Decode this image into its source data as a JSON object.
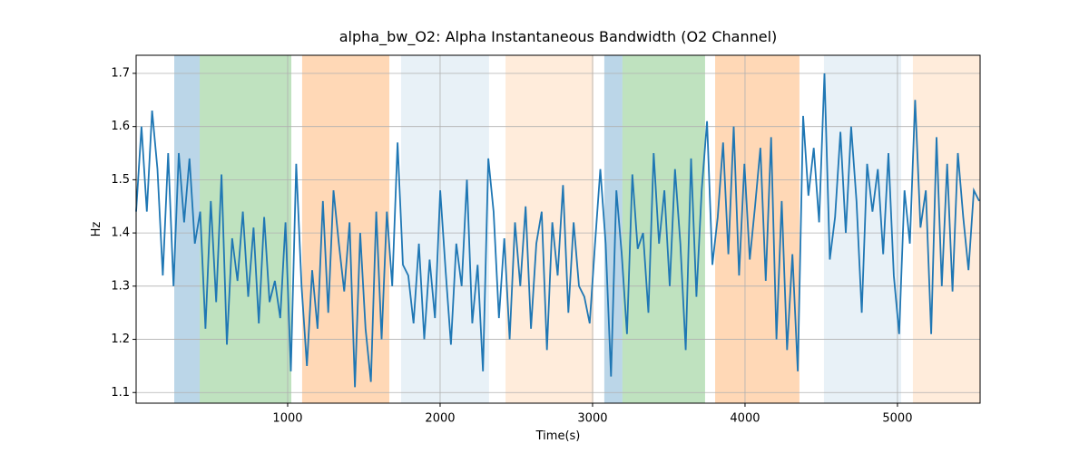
{
  "chart_data": {
    "type": "line",
    "title": "alpha_bw_O2: Alpha Instantaneous Bandwidth (O2 Channel)",
    "xlabel": "Time(s)",
    "ylabel": "Hz",
    "xlim": [
      6,
      5542
    ],
    "ylim": [
      1.08,
      1.734
    ],
    "xticks": [
      1000,
      2000,
      3000,
      4000,
      5000
    ],
    "yticks": [
      1.1,
      1.2,
      1.3,
      1.4,
      1.5,
      1.6,
      1.7
    ],
    "grid": true,
    "spans": [
      {
        "start": 256,
        "end": 423,
        "color": "#1f77b4",
        "alpha": 0.3
      },
      {
        "start": 423,
        "end": 1024,
        "color": "#2ca02c",
        "alpha": 0.3
      },
      {
        "start": 1095,
        "end": 1667,
        "color": "#ff7f0e",
        "alpha": 0.3
      },
      {
        "start": 1744,
        "end": 2321,
        "color": "#1f77b4",
        "alpha": 0.1
      },
      {
        "start": 2429,
        "end": 3006,
        "color": "#ff7f0e",
        "alpha": 0.15
      },
      {
        "start": 3077,
        "end": 3196,
        "color": "#1f77b4",
        "alpha": 0.3
      },
      {
        "start": 3196,
        "end": 3738,
        "color": "#2ca02c",
        "alpha": 0.3
      },
      {
        "start": 3804,
        "end": 4357,
        "color": "#ff7f0e",
        "alpha": 0.3
      },
      {
        "start": 4518,
        "end": 5024,
        "color": "#1f77b4",
        "alpha": 0.1
      },
      {
        "start": 5101,
        "end": 5542,
        "color": "#ff7f0e",
        "alpha": 0.15
      }
    ],
    "series": [
      {
        "color": "#1f77b4",
        "x": [
          6,
          41,
          76,
          111,
          146,
          181,
          216,
          251,
          286,
          321,
          356,
          391,
          426,
          461,
          496,
          531,
          566,
          601,
          636,
          671,
          706,
          741,
          776,
          811,
          846,
          881,
          916,
          951,
          986,
          1021,
          1056,
          1091,
          1126,
          1161,
          1196,
          1231,
          1266,
          1301,
          1336,
          1371,
          1406,
          1441,
          1476,
          1511,
          1546,
          1581,
          1616,
          1651,
          1686,
          1721,
          1756,
          1791,
          1826,
          1861,
          1896,
          1931,
          1966,
          2001,
          2036,
          2071,
          2106,
          2141,
          2176,
          2211,
          2246,
          2281,
          2316,
          2351,
          2386,
          2421,
          2456,
          2491,
          2526,
          2561,
          2596,
          2631,
          2666,
          2701,
          2736,
          2771,
          2806,
          2841,
          2876,
          2911,
          2946,
          2981,
          3016,
          3051,
          3086,
          3121,
          3156,
          3191,
          3226,
          3261,
          3296,
          3331,
          3366,
          3401,
          3436,
          3471,
          3506,
          3541,
          3576,
          3611,
          3646,
          3681,
          3716,
          3751,
          3786,
          3821,
          3856,
          3891,
          3926,
          3961,
          3996,
          4031,
          4066,
          4101,
          4136,
          4171,
          4206,
          4241,
          4276,
          4311,
          4346,
          4381,
          4416,
          4451,
          4486,
          4521,
          4556,
          4591,
          4626,
          4661,
          4696,
          4731,
          4766,
          4801,
          4836,
          4871,
          4906,
          4941,
          4976,
          5011,
          5046,
          5081,
          5116,
          5151,
          5186,
          5221,
          5256,
          5291,
          5326,
          5361,
          5396,
          5431,
          5466,
          5501,
          5536
        ],
        "values": [
          1.44,
          1.6,
          1.44,
          1.63,
          1.52,
          1.32,
          1.55,
          1.3,
          1.55,
          1.42,
          1.54,
          1.38,
          1.44,
          1.22,
          1.46,
          1.27,
          1.51,
          1.19,
          1.39,
          1.31,
          1.44,
          1.28,
          1.41,
          1.23,
          1.43,
          1.27,
          1.31,
          1.24,
          1.42,
          1.14,
          1.53,
          1.3,
          1.15,
          1.33,
          1.22,
          1.46,
          1.25,
          1.48,
          1.38,
          1.29,
          1.42,
          1.11,
          1.4,
          1.22,
          1.12,
          1.44,
          1.2,
          1.44,
          1.3,
          1.57,
          1.34,
          1.32,
          1.23,
          1.38,
          1.2,
          1.35,
          1.24,
          1.48,
          1.33,
          1.19,
          1.38,
          1.3,
          1.5,
          1.23,
          1.34,
          1.14,
          1.54,
          1.44,
          1.24,
          1.39,
          1.2,
          1.42,
          1.3,
          1.45,
          1.22,
          1.38,
          1.44,
          1.18,
          1.42,
          1.32,
          1.49,
          1.25,
          1.42,
          1.3,
          1.28,
          1.23,
          1.38,
          1.52,
          1.38,
          1.13,
          1.48,
          1.36,
          1.21,
          1.51,
          1.37,
          1.4,
          1.25,
          1.55,
          1.38,
          1.48,
          1.3,
          1.52,
          1.38,
          1.18,
          1.54,
          1.28,
          1.48,
          1.61,
          1.34,
          1.43,
          1.57,
          1.36,
          1.6,
          1.32,
          1.53,
          1.35,
          1.45,
          1.56,
          1.31,
          1.58,
          1.2,
          1.46,
          1.18,
          1.36,
          1.14,
          1.62,
          1.47,
          1.56,
          1.42,
          1.7,
          1.35,
          1.43,
          1.59,
          1.4,
          1.6,
          1.46,
          1.25,
          1.53,
          1.44,
          1.52,
          1.36,
          1.55,
          1.32,
          1.21,
          1.48,
          1.38,
          1.65,
          1.41,
          1.48,
          1.21,
          1.58,
          1.3,
          1.53,
          1.29,
          1.55,
          1.43,
          1.33,
          1.48,
          1.46
        ]
      }
    ]
  }
}
